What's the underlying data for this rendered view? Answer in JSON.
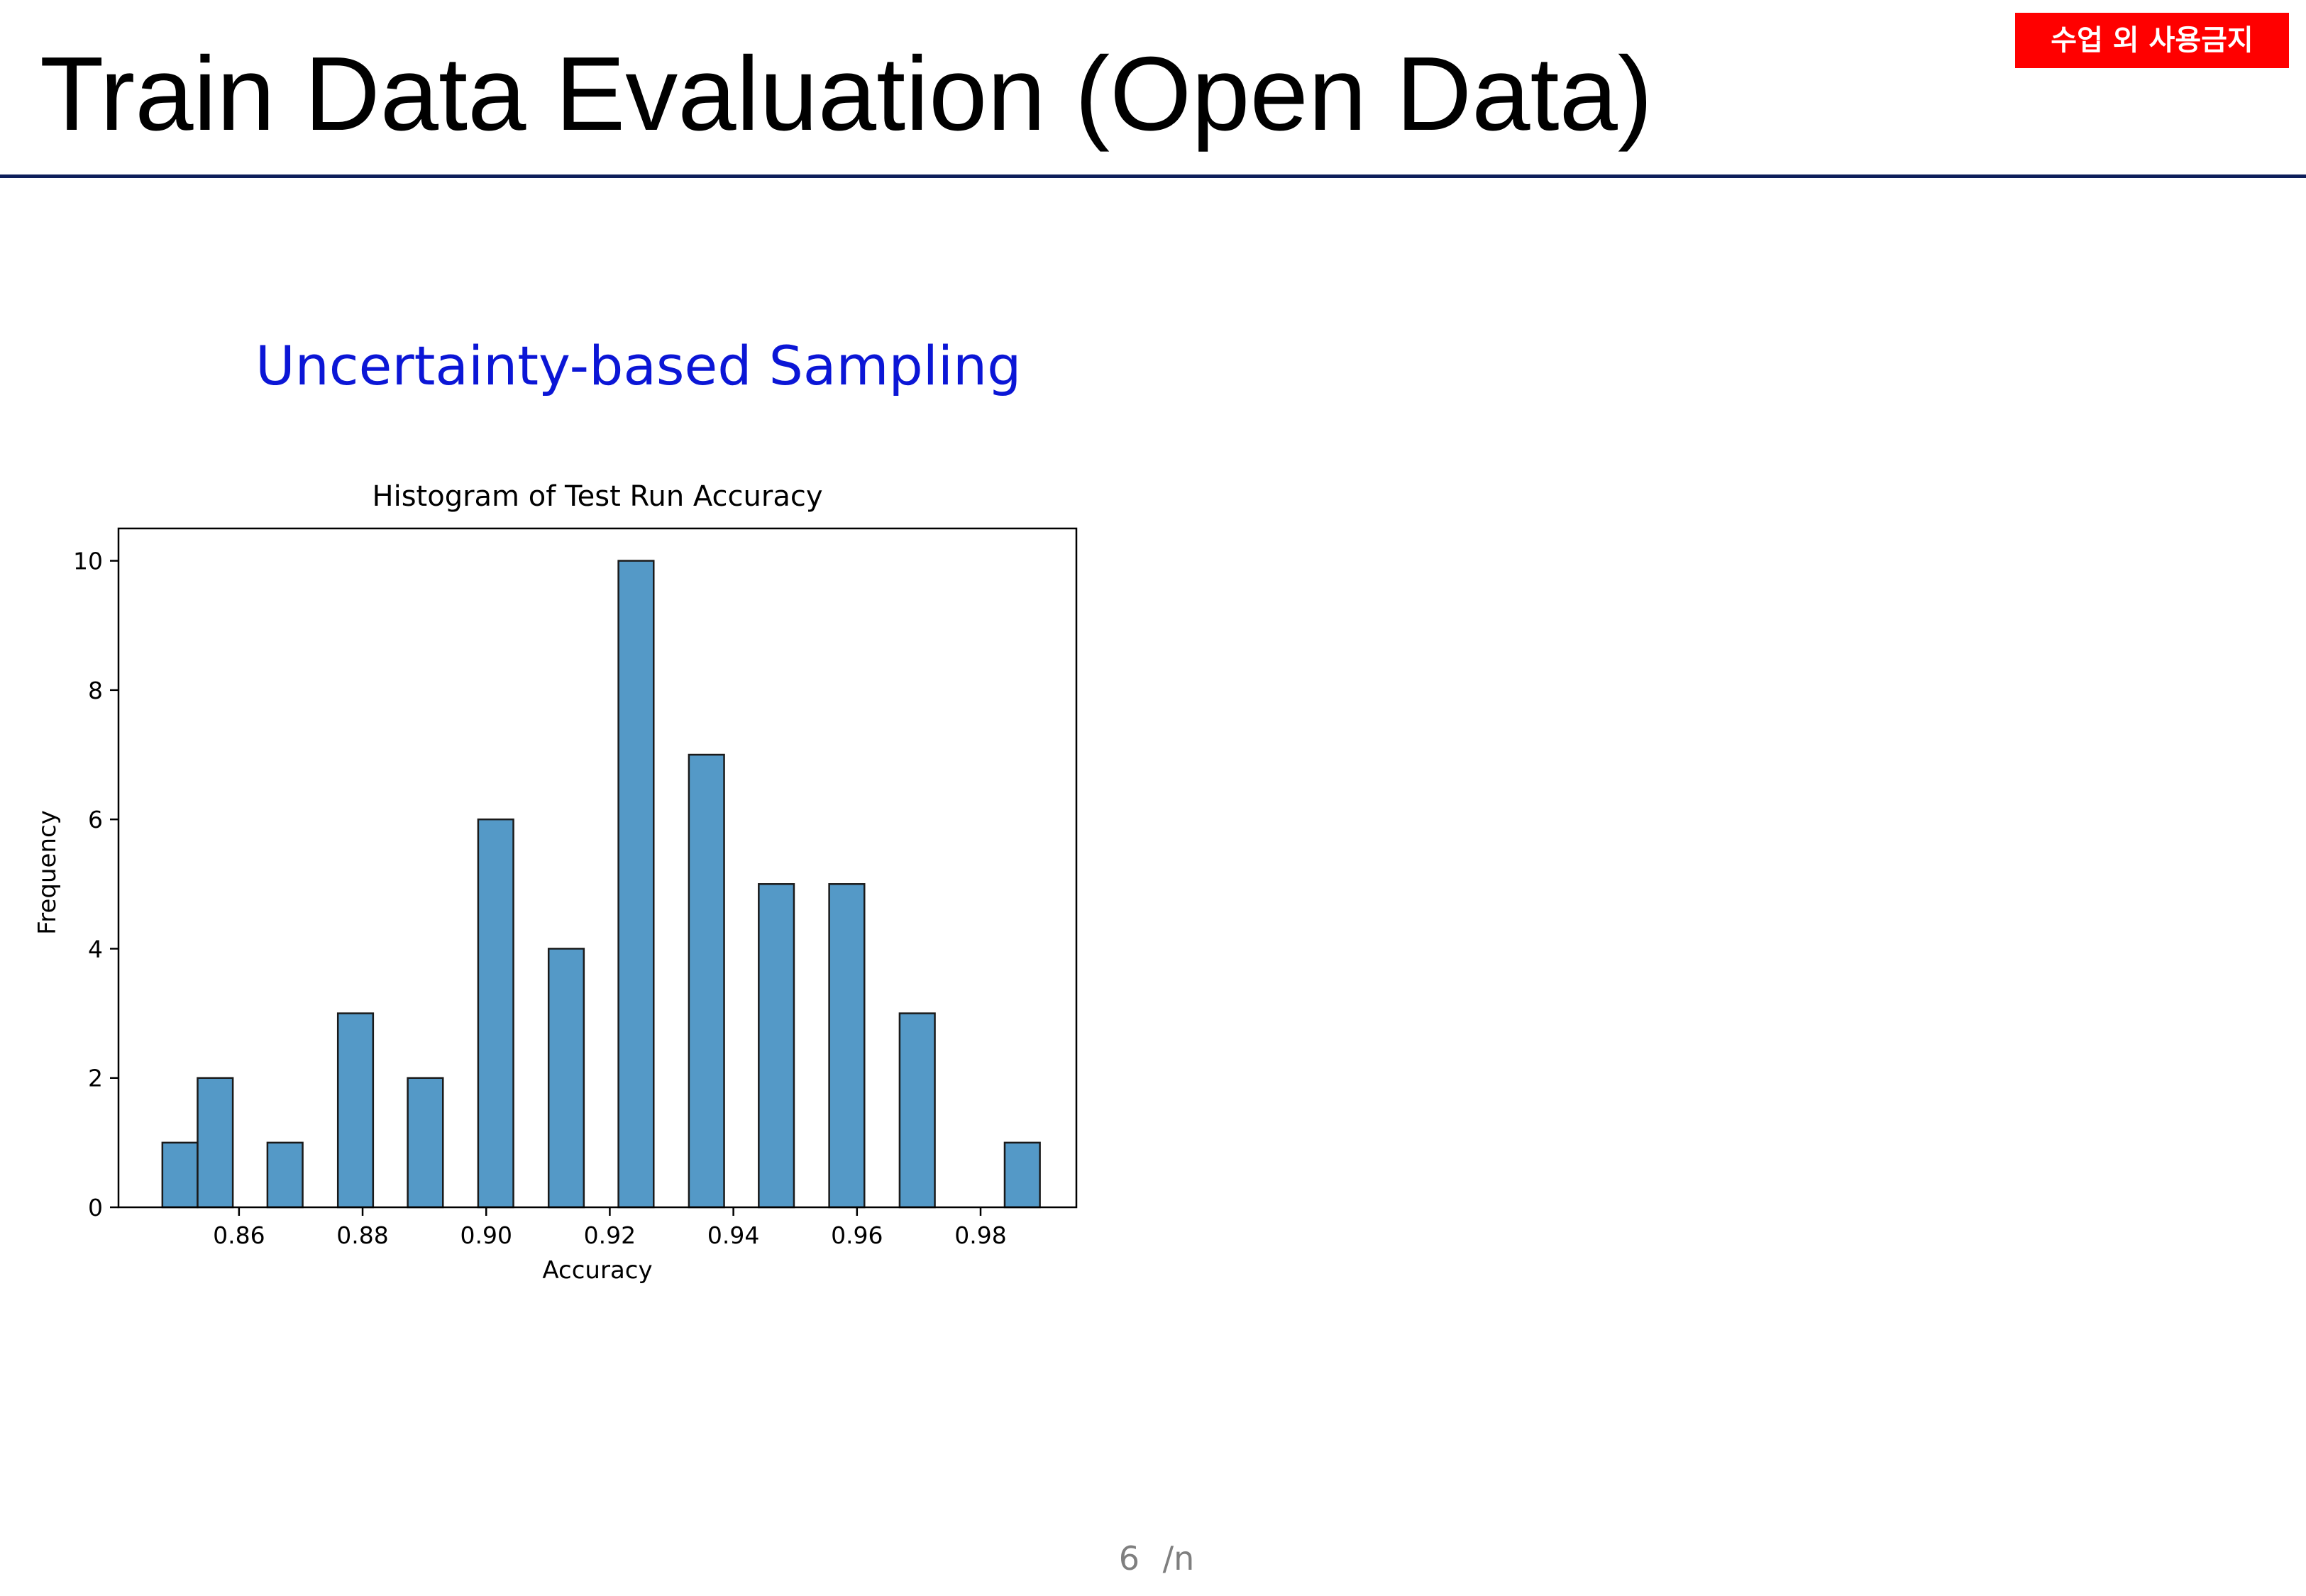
{
  "slide": {
    "title": "Train Data Evaluation (Open Data)",
    "badge": "수업 외 사용금지",
    "subtitle": "Uncertainty-based Sampling",
    "page_number": "6",
    "page_total": "/n"
  },
  "colors": {
    "badge_bg": "#ff0000",
    "subtitle": "#0b16d6",
    "title_rule": "#0d1e5a",
    "bar_fill": "#5499c7",
    "bar_edge": "#1a1a1a"
  },
  "chart_data": {
    "type": "bar",
    "title": "Histogram of Test Run Accuracy",
    "xlabel": "Accuracy",
    "ylabel": "Frequency",
    "xlim": [
      0.8405,
      0.9955
    ],
    "ylim": [
      0,
      10.5
    ],
    "bin_width": 0.0057,
    "xticks": [
      "0.86",
      "0.88",
      "0.90",
      "0.92",
      "0.94",
      "0.96",
      "0.98"
    ],
    "yticks": [
      "0",
      "2",
      "4",
      "6",
      "8",
      "10"
    ],
    "bins": [
      {
        "start": 0.8476,
        "count": 1
      },
      {
        "start": 0.8533,
        "count": 2
      },
      {
        "start": 0.8646,
        "count": 1
      },
      {
        "start": 0.876,
        "count": 3
      },
      {
        "start": 0.8873,
        "count": 2
      },
      {
        "start": 0.8987,
        "count": 6
      },
      {
        "start": 0.9101,
        "count": 4
      },
      {
        "start": 0.9214,
        "count": 10
      },
      {
        "start": 0.9328,
        "count": 7
      },
      {
        "start": 0.9441,
        "count": 5
      },
      {
        "start": 0.9555,
        "count": 5
      },
      {
        "start": 0.9669,
        "count": 3
      },
      {
        "start": 0.9839,
        "count": 1
      }
    ],
    "grid": false,
    "legend": "none"
  }
}
